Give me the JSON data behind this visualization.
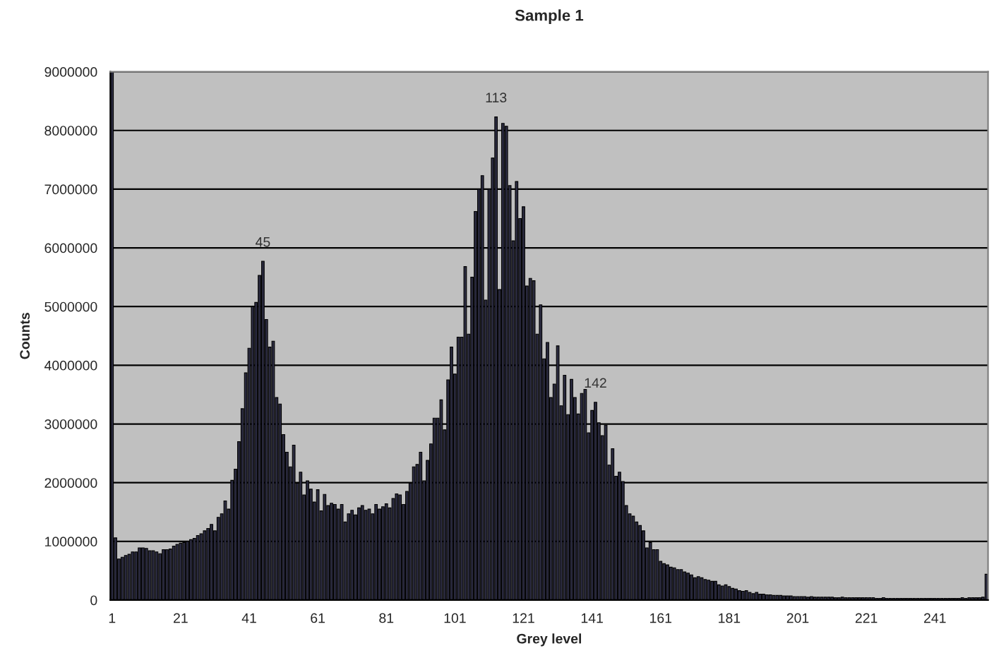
{
  "chart_data": {
    "type": "bar",
    "title": "Sample 1",
    "xlabel": "Grey level",
    "ylabel": "Counts",
    "x": [
      1,
      2,
      3,
      4,
      5,
      6,
      7,
      8,
      9,
      10,
      11,
      12,
      13,
      14,
      15,
      16,
      17,
      18,
      19,
      20,
      21,
      22,
      23,
      24,
      25,
      26,
      27,
      28,
      29,
      30,
      31,
      32,
      33,
      34,
      35,
      36,
      37,
      38,
      39,
      40,
      41,
      42,
      43,
      44,
      45,
      46,
      47,
      48,
      49,
      50,
      51,
      52,
      53,
      54,
      55,
      56,
      57,
      58,
      59,
      60,
      61,
      62,
      63,
      64,
      65,
      66,
      67,
      68,
      69,
      70,
      71,
      72,
      73,
      74,
      75,
      76,
      77,
      78,
      79,
      80,
      81,
      82,
      83,
      84,
      85,
      86,
      87,
      88,
      89,
      90,
      91,
      92,
      93,
      94,
      95,
      96,
      97,
      98,
      99,
      100,
      101,
      102,
      103,
      104,
      105,
      106,
      107,
      108,
      109,
      110,
      111,
      112,
      113,
      114,
      115,
      116,
      117,
      118,
      119,
      120,
      121,
      122,
      123,
      124,
      125,
      126,
      127,
      128,
      129,
      130,
      131,
      132,
      133,
      134,
      135,
      136,
      137,
      138,
      139,
      140,
      141,
      142,
      143,
      144,
      145,
      146,
      147,
      148,
      149,
      150,
      151,
      152,
      153,
      154,
      155,
      156,
      157,
      158,
      159,
      160,
      161,
      162,
      163,
      164,
      165,
      166,
      167,
      168,
      169,
      170,
      171,
      172,
      173,
      174,
      175,
      176,
      177,
      178,
      179,
      180,
      181,
      182,
      183,
      184,
      185,
      186,
      187,
      188,
      189,
      190,
      191,
      192,
      193,
      194,
      195,
      196,
      197,
      198,
      199,
      200,
      201,
      202,
      203,
      204,
      205,
      206,
      207,
      208,
      209,
      210,
      211,
      212,
      213,
      214,
      215,
      216,
      217,
      218,
      219,
      220,
      221,
      222,
      223,
      224,
      225,
      226,
      227,
      228,
      229,
      230,
      231,
      232,
      233,
      234,
      235,
      236,
      237,
      238,
      239,
      240,
      241,
      242,
      243,
      244,
      245,
      246,
      247,
      248,
      249,
      250,
      251,
      252,
      253,
      254,
      255,
      256
    ],
    "values": [
      9000000,
      1060000,
      700000,
      730000,
      760000,
      780000,
      820000,
      820000,
      890000,
      890000,
      880000,
      840000,
      840000,
      820000,
      790000,
      860000,
      860000,
      870000,
      920000,
      950000,
      970000,
      980000,
      1000000,
      1030000,
      1050000,
      1100000,
      1130000,
      1180000,
      1220000,
      1290000,
      1180000,
      1410000,
      1470000,
      1690000,
      1550000,
      2040000,
      2230000,
      2700000,
      3260000,
      3870000,
      4290000,
      5000000,
      5070000,
      5530000,
      5770000,
      4780000,
      4310000,
      4410000,
      3450000,
      3340000,
      2820000,
      2520000,
      2270000,
      2640000,
      1990000,
      2180000,
      1790000,
      2030000,
      1890000,
      1670000,
      1880000,
      1520000,
      1800000,
      1610000,
      1650000,
      1630000,
      1550000,
      1630000,
      1330000,
      1470000,
      1530000,
      1450000,
      1570000,
      1610000,
      1530000,
      1550000,
      1470000,
      1630000,
      1550000,
      1590000,
      1640000,
      1570000,
      1730000,
      1810000,
      1790000,
      1630000,
      1850000,
      1990000,
      2270000,
      2310000,
      2520000,
      2030000,
      2380000,
      2660000,
      3100000,
      3100000,
      3410000,
      2900000,
      3750000,
      4310000,
      3850000,
      4480000,
      4480000,
      5680000,
      4530000,
      5500000,
      6620000,
      7000000,
      7230000,
      5110000,
      7000000,
      7530000,
      8230000,
      5290000,
      8120000,
      8070000,
      7060000,
      6120000,
      7130000,
      6500000,
      6700000,
      5350000,
      5480000,
      5440000,
      4530000,
      5030000,
      4110000,
      4390000,
      3450000,
      3680000,
      4330000,
      3310000,
      3830000,
      3160000,
      3760000,
      3450000,
      3170000,
      3520000,
      3590000,
      2850000,
      3230000,
      3370000,
      3020000,
      2800000,
      2980000,
      2300000,
      2580000,
      2110000,
      2180000,
      2020000,
      1610000,
      1470000,
      1430000,
      1330000,
      1270000,
      1180000,
      890000,
      980000,
      860000,
      860000,
      660000,
      620000,
      600000,
      560000,
      550000,
      520000,
      520000,
      480000,
      460000,
      430000,
      380000,
      400000,
      380000,
      350000,
      340000,
      320000,
      320000,
      260000,
      240000,
      260000,
      230000,
      200000,
      190000,
      160000,
      150000,
      160000,
      130000,
      110000,
      130000,
      100000,
      100000,
      90000,
      90000,
      80000,
      80000,
      80000,
      70000,
      70000,
      70000,
      60000,
      60000,
      60000,
      60000,
      50000,
      60000,
      50000,
      50000,
      50000,
      50000,
      50000,
      50000,
      40000,
      40000,
      50000,
      40000,
      40000,
      40000,
      40000,
      40000,
      40000,
      40000,
      40000,
      40000,
      30000,
      30000,
      40000,
      30000,
      30000,
      30000,
      30000,
      30000,
      30000,
      30000,
      30000,
      30000,
      30000,
      30000,
      30000,
      30000,
      30000,
      30000,
      30000,
      30000,
      30000,
      30000,
      30000,
      30000,
      30000,
      40000,
      30000,
      40000,
      40000,
      40000,
      40000,
      50000,
      440000
    ],
    "color": "#2b2b40",
    "xlim": [
      0.5,
      256.5
    ],
    "xticks": [
      1,
      21,
      41,
      61,
      81,
      101,
      121,
      141,
      161,
      181,
      201,
      221,
      241
    ],
    "ylim": [
      0,
      9000000
    ],
    "yticks": [
      0,
      1000000,
      2000000,
      3000000,
      4000000,
      5000000,
      6000000,
      7000000,
      8000000,
      9000000
    ],
    "grid": "y",
    "annotations": [
      {
        "text": "45",
        "x": 45,
        "y": 5770000
      },
      {
        "text": "113",
        "x": 113,
        "y": 8230000
      },
      {
        "text": "142",
        "x": 142,
        "y": 3370000
      }
    ]
  }
}
